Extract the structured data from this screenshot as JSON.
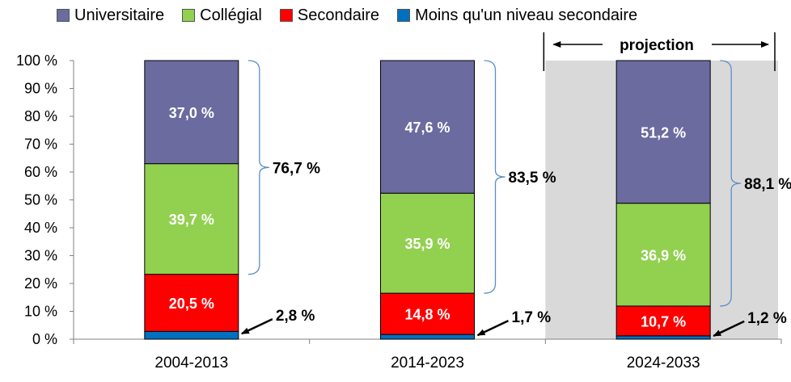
{
  "chart_data": {
    "type": "bar",
    "stacked": true,
    "categories": [
      "2004-2013",
      "2014-2023",
      "2024-2033"
    ],
    "series": [
      {
        "name": "Moins qu'un niveau secondaire",
        "color": "#0070c0",
        "values": [
          2.8,
          1.7,
          1.2
        ]
      },
      {
        "name": "Secondaire",
        "color": "#ff0000",
        "values": [
          20.5,
          14.8,
          10.7
        ]
      },
      {
        "name": "Collégial",
        "color": "#92d050",
        "values": [
          39.7,
          35.9,
          36.9
        ]
      },
      {
        "name": "Universitaire",
        "color": "#6b6b9f",
        "values": [
          37.0,
          47.6,
          51.2
        ]
      }
    ],
    "legend_order": [
      "Universitaire",
      "Collégial",
      "Secondaire",
      "Moins qu'un niveau secondaire"
    ],
    "segment_labels": [
      [
        "",
        "20,5 %",
        "39,7 %",
        "37,0 %"
      ],
      [
        "",
        "14,8 %",
        "35,9 %",
        "47,6 %"
      ],
      [
        "",
        "10,7 %",
        "36,9 %",
        "51,2 %"
      ]
    ],
    "small_labels": [
      "2,8 %",
      "1,7 %",
      "1,2 %"
    ],
    "brace_labels": [
      "76,7 %",
      "83,5 %",
      "88,1 %"
    ],
    "projection_label": "projection",
    "projection_shaded": true,
    "yticks": [
      "0 %",
      "10 %",
      "20 %",
      "30 %",
      "40 %",
      "50 %",
      "60 %",
      "70 %",
      "80 %",
      "90 %",
      "100 %"
    ],
    "ylim": [
      0,
      100
    ],
    "legend_position": "top",
    "grid": false
  }
}
